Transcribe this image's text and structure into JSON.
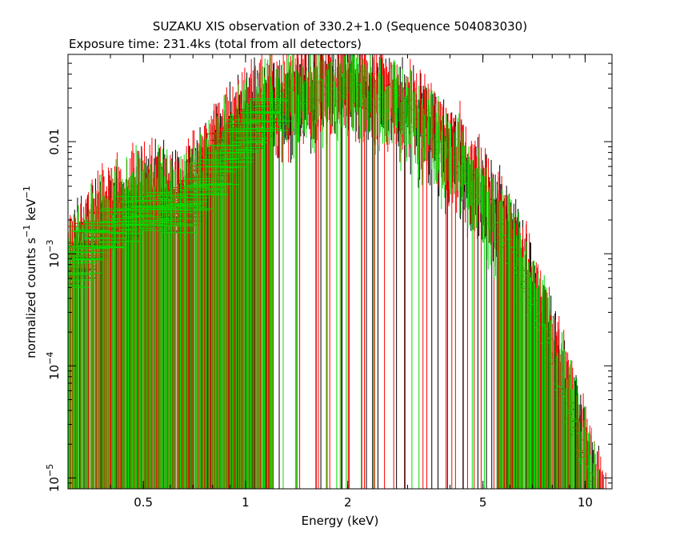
{
  "chart_data": {
    "type": "scatter",
    "title": "SUZAKU XIS observation of 330.2+1.0 (Sequence 504083030)",
    "subtitle": "Exposure time: 231.4ks (total from all detectors)",
    "xlabel": "Energy (keV)",
    "ylabel": "normalized counts s",
    "ylabel_sup1": "−1",
    "ylabel_mid": " keV",
    "ylabel_sup2": "−1",
    "xscale": "log",
    "yscale": "log",
    "xlim": [
      0.3,
      12
    ],
    "ylim": [
      8e-06,
      0.06
    ],
    "x_ticks": [
      {
        "value": 0.5,
        "label": "0.5"
      },
      {
        "value": 1,
        "label": "1"
      },
      {
        "value": 2,
        "label": "2"
      },
      {
        "value": 5,
        "label": "5"
      },
      {
        "value": 10,
        "label": "10"
      }
    ],
    "y_ticks": [
      {
        "value": 1e-05,
        "mantissa": "10",
        "exp": "−5"
      },
      {
        "value": 0.0001,
        "mantissa": "10",
        "exp": "−4"
      },
      {
        "value": 0.001,
        "mantissa": "10",
        "exp": "−3"
      },
      {
        "value": 0.01,
        "mantissa": "0.01",
        "exp": ""
      }
    ],
    "grid": false,
    "legend": "none",
    "series": [
      {
        "color": "#000000",
        "n": 420,
        "emin": 0.3,
        "emax": 12,
        "seed": 11,
        "amp": 1.0,
        "cutoff": 9.5
      },
      {
        "color": "#ff0000",
        "n": 520,
        "emin": 0.3,
        "emax": 12,
        "seed": 23,
        "amp": 1.1,
        "cutoff": 12
      },
      {
        "color": "#00dd00",
        "n": 420,
        "emin": 0.3,
        "emax": 12,
        "seed": 37,
        "amp": 0.95,
        "cutoff": 8.5
      }
    ]
  }
}
